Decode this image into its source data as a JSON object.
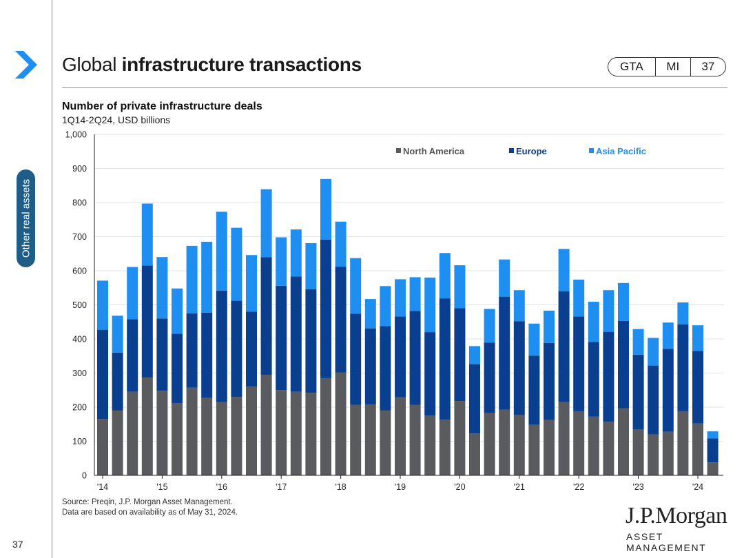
{
  "page": {
    "number": "37",
    "section_label": "Other real assets",
    "title_part1": "Global",
    "title_part2": "infrastructure transactions",
    "tags": [
      "GTA",
      "MI",
      "37"
    ],
    "colors": {
      "accent": "#1f5c86",
      "north_america": "#595b5f",
      "europe": "#0a3e8f",
      "asia_pacific": "#1e8ff0"
    }
  },
  "source": {
    "line1": "Source: Preqin, J.P. Morgan Asset Management.",
    "line2": "Data are based on availability as of May 31, 2024."
  },
  "logo": {
    "line1": "J.P.Morgan",
    "line2": "ASSET MANAGEMENT"
  },
  "chart_data": {
    "type": "bar",
    "stacked": true,
    "title": "Number of private infrastructure deals",
    "subtitle": "1Q14-2Q24, USD billions",
    "ylim": [
      0,
      1000
    ],
    "yticks": [
      "0",
      "100",
      "200",
      "300",
      "400",
      "500",
      "600",
      "700",
      "800",
      "900",
      "1,000"
    ],
    "xtick_labels": [
      "'14",
      "'15",
      "'16",
      "'17",
      "'18",
      "'19",
      "'20",
      "'21",
      "'22",
      "'23",
      "'24"
    ],
    "legend_position": "top-right",
    "categories": [
      "1Q14",
      "2Q14",
      "3Q14",
      "4Q14",
      "1Q15",
      "2Q15",
      "3Q15",
      "4Q15",
      "1Q16",
      "2Q16",
      "3Q16",
      "4Q16",
      "1Q17",
      "2Q17",
      "3Q17",
      "4Q17",
      "1Q18",
      "2Q18",
      "3Q18",
      "4Q18",
      "1Q19",
      "2Q19",
      "3Q19",
      "4Q19",
      "1Q20",
      "2Q20",
      "3Q20",
      "4Q20",
      "1Q21",
      "2Q21",
      "3Q21",
      "4Q21",
      "1Q22",
      "2Q22",
      "3Q22",
      "4Q22",
      "1Q23",
      "2Q23",
      "3Q23",
      "4Q23",
      "1Q24",
      "2Q24"
    ],
    "series": [
      {
        "name": "North America",
        "values": [
          165,
          190,
          245,
          287,
          248,
          212,
          257,
          227,
          215,
          230,
          260,
          295,
          250,
          245,
          242,
          285,
          302,
          207,
          208,
          190,
          229,
          207,
          175,
          163,
          218,
          123,
          183,
          193,
          177,
          148,
          162,
          215,
          188,
          172,
          157,
          197,
          134,
          120,
          128,
          188,
          152,
          38
        ]
      },
      {
        "name": "Europe",
        "values": [
          262,
          170,
          213,
          328,
          212,
          203,
          218,
          250,
          327,
          282,
          220,
          345,
          306,
          338,
          304,
          406,
          310,
          267,
          223,
          248,
          237,
          275,
          245,
          356,
          272,
          203,
          206,
          331,
          275,
          203,
          226,
          325,
          278,
          219,
          264,
          256,
          220,
          202,
          243,
          255,
          213,
          70
        ]
      },
      {
        "name": "Asia Pacific",
        "values": [
          144,
          108,
          153,
          182,
          180,
          133,
          198,
          208,
          231,
          214,
          166,
          199,
          142,
          138,
          135,
          178,
          132,
          163,
          86,
          117,
          109,
          99,
          160,
          133,
          126,
          53,
          99,
          109,
          91,
          94,
          95,
          124,
          108,
          118,
          122,
          111,
          75,
          81,
          77,
          64,
          75,
          21
        ]
      }
    ]
  }
}
